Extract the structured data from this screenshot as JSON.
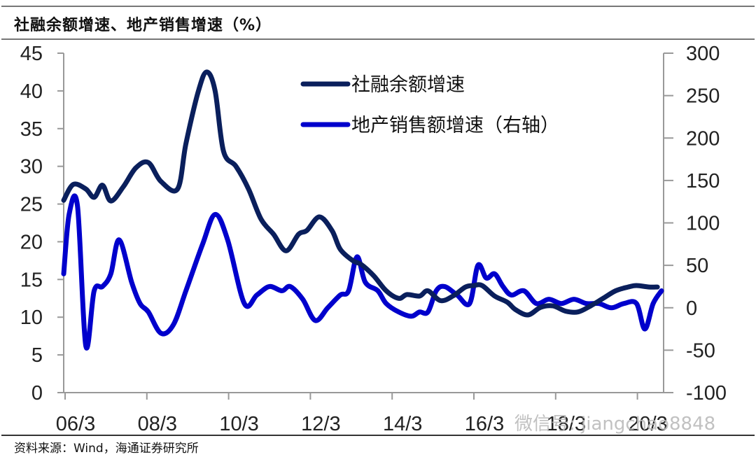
{
  "header": {
    "title": "社融余额增速、地产销售增速（%）"
  },
  "footer": {
    "source": "资料来源：Wind，海通证券研究所",
    "watermark": "微信号: jiangchao8848"
  },
  "legend": {
    "series1": "社融余额增速",
    "series2": "地产销售额增速（右轴）"
  },
  "colors": {
    "series1": "#0a1f5c",
    "series2": "#0000cc",
    "axis": "#999999"
  },
  "chart_data": {
    "type": "line",
    "title": "社融余额增速、地产销售增速（%）",
    "xlabel": "",
    "ylabel": "%",
    "x_ticks": [
      "06/3",
      "08/3",
      "10/3",
      "12/3",
      "14/3",
      "16/3",
      "18/3",
      "20/3"
    ],
    "y_left": {
      "ticks": [
        0,
        5,
        10,
        15,
        20,
        25,
        30,
        35,
        40,
        45
      ],
      "range": [
        0,
        45
      ]
    },
    "y_right": {
      "ticks": [
        -100,
        -50,
        0,
        50,
        100,
        150,
        200,
        250,
        300
      ],
      "range": [
        -100,
        300
      ]
    },
    "legend_position": "top-center",
    "grid": false,
    "series": [
      {
        "name": "社融余额增速",
        "axis": "left",
        "x": [
          2006.17,
          2006.4,
          2006.7,
          2006.9,
          2007.1,
          2007.3,
          2007.6,
          2007.9,
          2008.2,
          2008.5,
          2008.9,
          2009.1,
          2009.4,
          2009.6,
          2009.8,
          2010.0,
          2010.3,
          2010.6,
          2010.9,
          2011.2,
          2011.5,
          2011.8,
          2012.0,
          2012.3,
          2012.6,
          2012.8,
          2013.1,
          2013.3,
          2013.6,
          2013.9,
          2014.2,
          2014.4,
          2014.7,
          2014.9,
          2015.2,
          2015.5,
          2015.8,
          2016.0,
          2016.2,
          2016.5,
          2016.8,
          2017.0,
          2017.3,
          2017.6,
          2017.9,
          2018.2,
          2018.5,
          2018.8,
          2019.1,
          2019.4,
          2019.7,
          2019.9,
          2020.2,
          2020.4
        ],
        "values": [
          25.5,
          27.6,
          27.0,
          25.9,
          27.5,
          25.4,
          27.3,
          29.8,
          30.5,
          28.0,
          27.0,
          33.0,
          40.0,
          42.5,
          40.0,
          32.0,
          30.0,
          27.0,
          23.0,
          21.0,
          18.8,
          21.0,
          21.5,
          23.3,
          21.5,
          19.0,
          17.5,
          17.0,
          15.5,
          13.5,
          12.5,
          13.0,
          12.8,
          13.5,
          12.2,
          12.8,
          14.0,
          14.2,
          14.2,
          12.8,
          12.0,
          11.0,
          10.3,
          11.3,
          11.5,
          10.8,
          10.7,
          11.5,
          12.5,
          13.5,
          14.0,
          14.2,
          14.0,
          14.0
        ]
      },
      {
        "name": "地产销售额增速（右轴）",
        "axis": "right",
        "x": [
          2006.17,
          2006.3,
          2006.5,
          2006.7,
          2006.9,
          2007.1,
          2007.3,
          2007.5,
          2007.8,
          2008.0,
          2008.2,
          2008.5,
          2008.8,
          2009.1,
          2009.5,
          2009.8,
          2010.1,
          2010.5,
          2010.8,
          2011.1,
          2011.4,
          2011.6,
          2011.9,
          2012.2,
          2012.5,
          2012.8,
          2013.0,
          2013.2,
          2013.4,
          2013.7,
          2013.9,
          2014.2,
          2014.5,
          2014.7,
          2014.9,
          2015.1,
          2015.3,
          2015.6,
          2015.9,
          2016.1,
          2016.3,
          2016.5,
          2016.7,
          2016.9,
          2017.2,
          2017.5,
          2017.8,
          2018.1,
          2018.4,
          2018.7,
          2019.0,
          2019.3,
          2019.6,
          2019.9,
          2020.1,
          2020.3,
          2020.5
        ],
        "values": [
          40,
          110,
          120,
          -45,
          20,
          25,
          40,
          80,
          30,
          5,
          -5,
          -30,
          -20,
          20,
          75,
          110,
          80,
          5,
          15,
          25,
          20,
          25,
          10,
          -15,
          0,
          15,
          20,
          60,
          30,
          20,
          5,
          -5,
          -10,
          -5,
          -5,
          20,
          25,
          15,
          5,
          50,
          35,
          40,
          25,
          15,
          20,
          5,
          10,
          5,
          10,
          5,
          5,
          0,
          5,
          5,
          -25,
          5,
          20
        ]
      }
    ]
  }
}
